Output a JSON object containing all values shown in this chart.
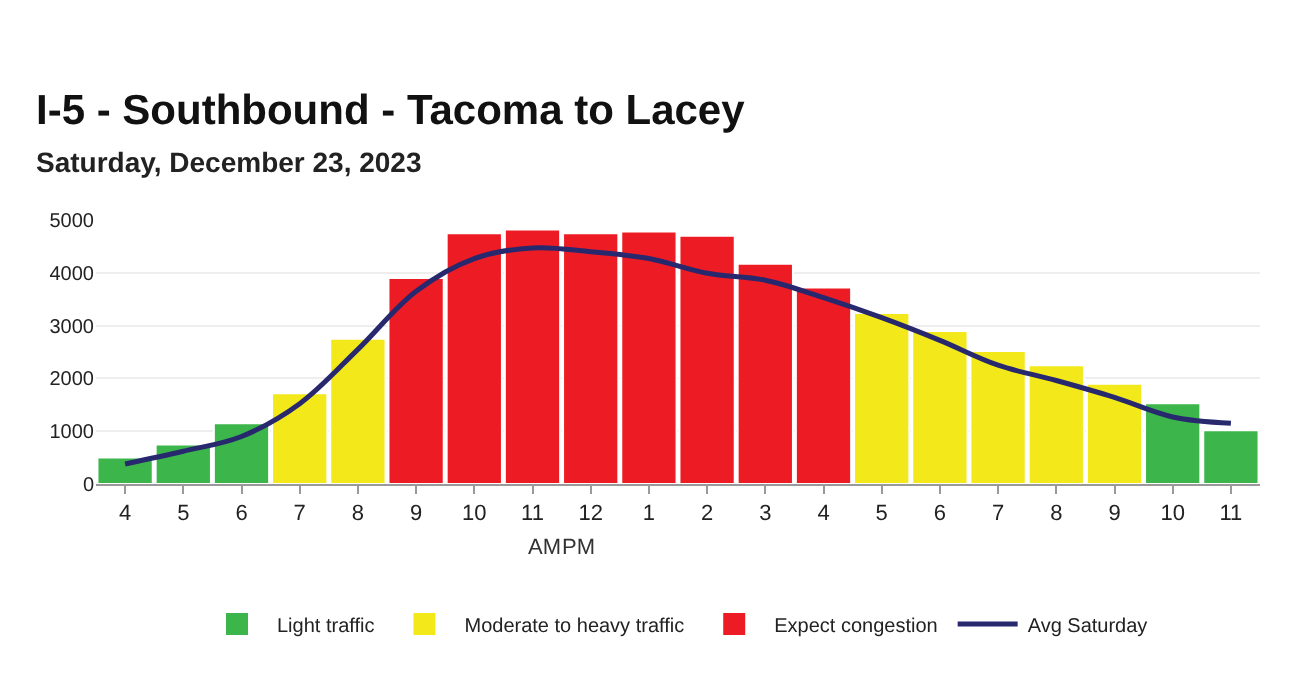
{
  "chart_data": {
    "type": "bar",
    "title": "I-5 - Southbound - Tacoma to Lacey",
    "subtitle": "Saturday, December 23, 2023",
    "categories": [
      "4",
      "5",
      "6",
      "7",
      "8",
      "9",
      "10",
      "11",
      "12",
      "1",
      "2",
      "3",
      "4",
      "5",
      "6",
      "7",
      "8",
      "9",
      "10",
      "11"
    ],
    "series": [
      {
        "name": "Light traffic",
        "color": "#3cb54a",
        "values": [
          500,
          750,
          1150,
          null,
          null,
          null,
          null,
          null,
          null,
          null,
          null,
          null,
          null,
          null,
          null,
          null,
          null,
          null,
          1530,
          1020
        ]
      },
      {
        "name": "Moderate to heavy traffic",
        "color": "#f2e81a",
        "values": [
          null,
          null,
          null,
          1720,
          2750,
          null,
          null,
          null,
          null,
          null,
          null,
          null,
          null,
          3240,
          2900,
          2520,
          2250,
          1900,
          null,
          null
        ]
      },
      {
        "name": "Expect congestion",
        "color": "#ed1c24",
        "values": [
          null,
          null,
          null,
          null,
          null,
          3900,
          4750,
          4820,
          4750,
          4780,
          4700,
          4170,
          3720,
          null,
          null,
          null,
          null,
          null,
          null,
          null
        ]
      },
      {
        "name": "Avg Saturday",
        "type": "line",
        "color": "#27286e",
        "values": [
          380,
          620,
          900,
          1520,
          2550,
          3650,
          4270,
          4470,
          4400,
          4270,
          3990,
          3860,
          3530,
          3150,
          2720,
          2250,
          1960,
          1640,
          1270,
          1150
        ]
      }
    ],
    "annotations": [
      "AM",
      "PM"
    ],
    "ylim": [
      0,
      5000
    ],
    "yticks": [
      0,
      1000,
      2000,
      3000,
      4000,
      5000
    ],
    "grid": "y",
    "legend": "bottom",
    "marker": "none",
    "line_style": "solid"
  }
}
